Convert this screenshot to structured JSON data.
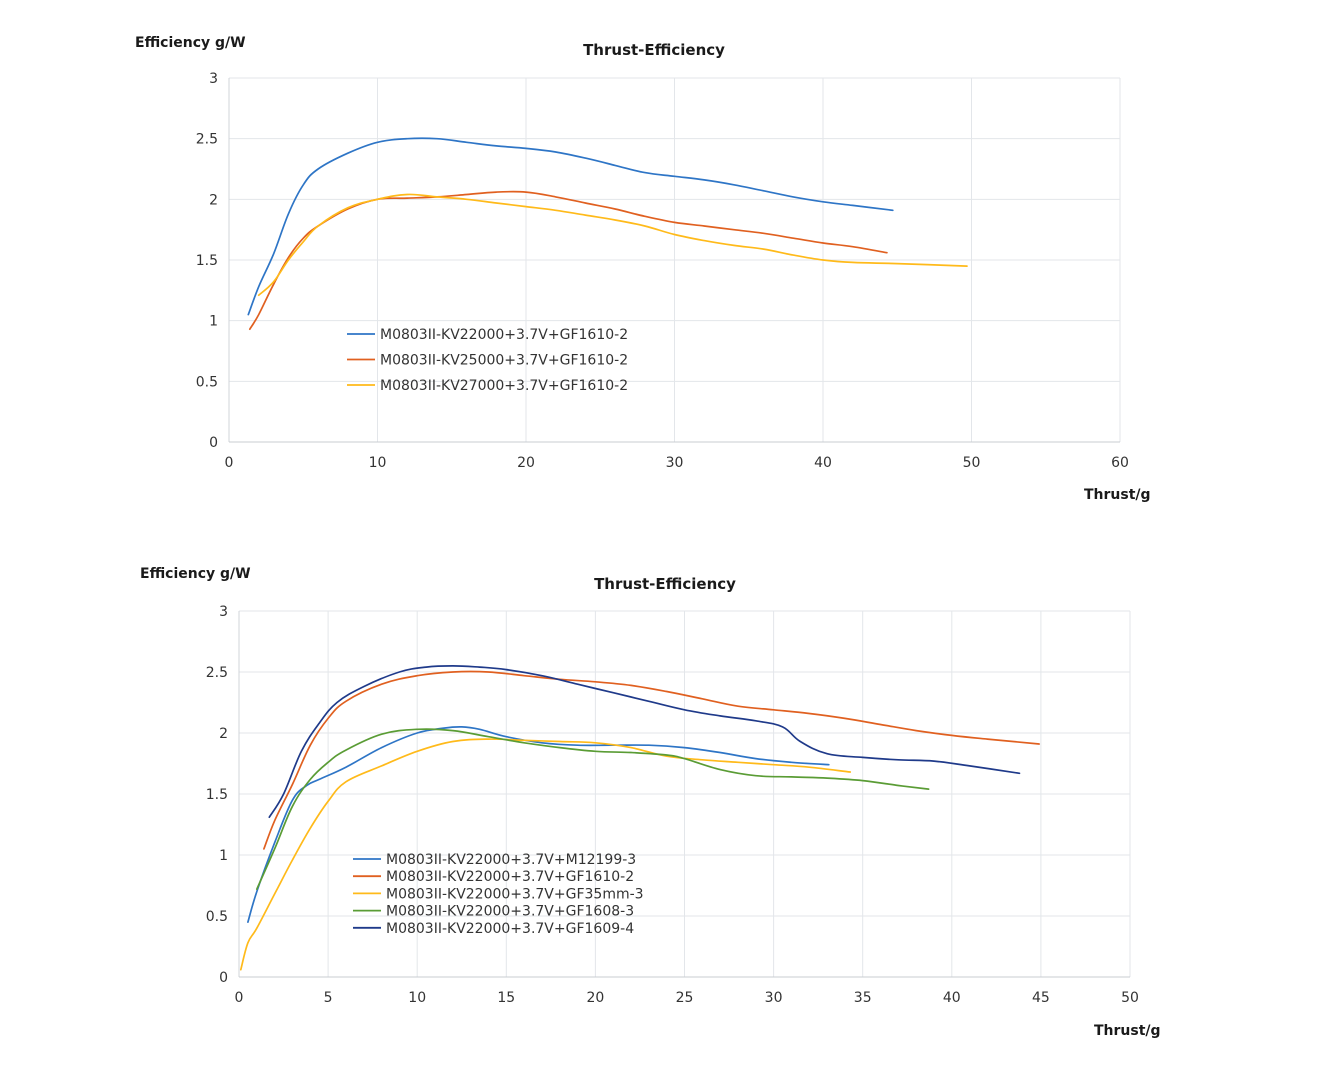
{
  "chart_data": [
    {
      "type": "line",
      "title": "Thrust-Efficiency",
      "ylabel": "Efficiency g/W",
      "xlabel": "Thrust/g",
      "xlim": [
        0,
        60
      ],
      "ylim": [
        0,
        3
      ],
      "xticks": [
        0,
        10,
        20,
        30,
        40,
        50,
        60
      ],
      "xtick_labels": [
        "0",
        "10",
        "20",
        "30",
        "40",
        "50",
        "60"
      ],
      "yticks": [
        0,
        0.5,
        1,
        1.5,
        2,
        2.5,
        3
      ],
      "ytick_labels": [
        "0",
        "0.5",
        "1",
        "1.5",
        "2",
        "2.5",
        "3"
      ],
      "grid": true,
      "legend_position": "center-left",
      "series": [
        {
          "name": "M0803II-KV22000+3.7V+GF1610-2",
          "color": "#2e75c6",
          "x": [
            1.3,
            2,
            3,
            4,
            5,
            6,
            8,
            10,
            12,
            14,
            16,
            18,
            20,
            22,
            24,
            26,
            28,
            30,
            32,
            34,
            36,
            38,
            40,
            42,
            44.7
          ],
          "y": [
            1.05,
            1.28,
            1.55,
            1.88,
            2.12,
            2.25,
            2.38,
            2.47,
            2.5,
            2.5,
            2.47,
            2.44,
            2.42,
            2.39,
            2.34,
            2.28,
            2.22,
            2.19,
            2.16,
            2.12,
            2.07,
            2.02,
            1.98,
            1.95,
            1.91
          ]
        },
        {
          "name": "M0803II-KV25000+3.7V+GF1610-2",
          "color": "#e06020",
          "x": [
            1.4,
            2,
            3,
            4,
            5,
            6,
            8,
            10,
            12,
            14,
            16,
            18,
            20,
            22,
            24,
            26,
            28,
            30,
            32,
            34,
            36,
            38,
            40,
            42,
            44.3
          ],
          "y": [
            0.93,
            1.05,
            1.3,
            1.52,
            1.68,
            1.78,
            1.92,
            2.0,
            2.01,
            2.02,
            2.04,
            2.06,
            2.06,
            2.02,
            1.97,
            1.92,
            1.86,
            1.81,
            1.78,
            1.75,
            1.72,
            1.68,
            1.64,
            1.61,
            1.56
          ]
        },
        {
          "name": "M0803II-KV27000+3.7V+GF1610-2",
          "color": "#ffba1a",
          "x": [
            2.0,
            3,
            4,
            5,
            6,
            8,
            10,
            12,
            14,
            16,
            18,
            20,
            22,
            24,
            26,
            28,
            30,
            32,
            34,
            36,
            38,
            40,
            42,
            45,
            49.7
          ],
          "y": [
            1.21,
            1.32,
            1.5,
            1.65,
            1.78,
            1.93,
            2.0,
            2.04,
            2.02,
            2.0,
            1.97,
            1.94,
            1.91,
            1.87,
            1.83,
            1.78,
            1.71,
            1.66,
            1.62,
            1.59,
            1.54,
            1.5,
            1.48,
            1.47,
            1.45
          ]
        }
      ]
    },
    {
      "type": "line",
      "title": "Thrust-Efficiency",
      "ylabel": "Efficiency g/W",
      "xlabel": "Thrust/g",
      "xlim": [
        0,
        50
      ],
      "ylim": [
        0,
        3
      ],
      "xticks": [
        0,
        5,
        10,
        15,
        20,
        25,
        30,
        35,
        40,
        45,
        50
      ],
      "xtick_labels": [
        "0",
        "5",
        "10",
        "15",
        "20",
        "25",
        "30",
        "35",
        "40",
        "45",
        "50"
      ],
      "yticks": [
        0,
        0.5,
        1,
        1.5,
        2,
        2.5,
        3
      ],
      "ytick_labels": [
        "0",
        "0.5",
        "1",
        "1.5",
        "2",
        "2.5",
        "3"
      ],
      "grid": true,
      "legend_position": "lower-left",
      "series": [
        {
          "name": "M0803II-KV22000+3.7V+M12199-3",
          "color": "#2e75c6",
          "x": [
            0.5,
            1,
            2,
            3,
            3.8,
            4.5,
            6,
            8,
            10,
            11.5,
            12.5,
            13.5,
            15,
            17,
            19,
            21,
            23,
            25,
            27,
            29,
            31,
            33.1
          ],
          "y": [
            0.45,
            0.7,
            1.1,
            1.45,
            1.57,
            1.62,
            1.72,
            1.88,
            2.0,
            2.04,
            2.05,
            2.03,
            1.97,
            1.92,
            1.9,
            1.9,
            1.9,
            1.88,
            1.84,
            1.79,
            1.76,
            1.74
          ]
        },
        {
          "name": "M0803II-KV22000+3.7V+GF1610-2",
          "color": "#e06020",
          "x": [
            1.4,
            2,
            3,
            4,
            5,
            6,
            8,
            10,
            12,
            14,
            16,
            18,
            20,
            22,
            24,
            26,
            28,
            30,
            32,
            34,
            36,
            38,
            40,
            42,
            44.9
          ],
          "y": [
            1.05,
            1.28,
            1.58,
            1.9,
            2.12,
            2.26,
            2.4,
            2.47,
            2.5,
            2.5,
            2.47,
            2.44,
            2.42,
            2.39,
            2.34,
            2.28,
            2.22,
            2.19,
            2.16,
            2.12,
            2.07,
            2.02,
            1.98,
            1.95,
            1.91
          ]
        },
        {
          "name": "M0803II-KV22000+3.7V+GF35mm-3",
          "color": "#ffba1a",
          "x": [
            0.1,
            0.5,
            1,
            2,
            3,
            4,
            5,
            6,
            8,
            10,
            12,
            14,
            16,
            18,
            20,
            22,
            24,
            26,
            28,
            30,
            32,
            34.3
          ],
          "y": [
            0.06,
            0.28,
            0.4,
            0.68,
            0.96,
            1.22,
            1.44,
            1.6,
            1.73,
            1.85,
            1.93,
            1.95,
            1.94,
            1.93,
            1.92,
            1.88,
            1.81,
            1.78,
            1.76,
            1.74,
            1.72,
            1.68
          ]
        },
        {
          "name": "M0803II-KV22000+3.7V+GF1608-3",
          "color": "#5a9c35",
          "x": [
            1.0,
            2,
            3,
            4,
            5,
            6,
            8,
            10,
            12,
            14,
            16,
            18,
            20,
            22,
            24,
            25,
            27,
            29,
            31,
            33,
            35,
            37,
            38.7
          ],
          "y": [
            0.72,
            1.05,
            1.4,
            1.62,
            1.76,
            1.86,
            1.99,
            2.03,
            2.02,
            1.97,
            1.92,
            1.88,
            1.85,
            1.84,
            1.82,
            1.79,
            1.7,
            1.65,
            1.64,
            1.63,
            1.61,
            1.57,
            1.54
          ]
        },
        {
          "name": "M0803II-KV22000+3.7V+GF1609-4",
          "color": "#1f3a8a",
          "x": [
            1.7,
            2.5,
            3.5,
            4.5,
            5.5,
            7,
            9,
            10.5,
            12,
            13.5,
            15,
            17,
            19,
            21,
            23,
            25,
            27,
            29,
            30.5,
            31.5,
            33,
            35,
            37,
            39,
            41,
            43.8
          ],
          "y": [
            1.31,
            1.5,
            1.85,
            2.08,
            2.25,
            2.38,
            2.5,
            2.54,
            2.55,
            2.54,
            2.52,
            2.47,
            2.4,
            2.33,
            2.26,
            2.19,
            2.14,
            2.1,
            2.05,
            1.93,
            1.83,
            1.8,
            1.78,
            1.77,
            1.73,
            1.67
          ]
        }
      ]
    }
  ]
}
